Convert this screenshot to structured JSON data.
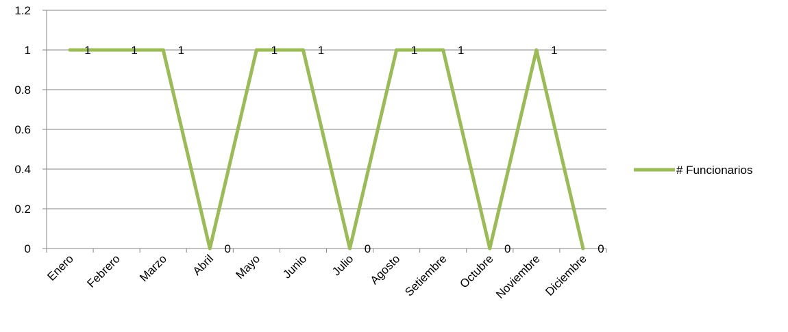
{
  "chart_data": {
    "type": "line",
    "title": "",
    "xlabel": "",
    "ylabel": "",
    "categories": [
      "Enero",
      "Febrero",
      "Marzo",
      "Abril",
      "Mayo",
      "Junio",
      "Julio",
      "Agosto",
      "Setiembre",
      "Octubre",
      "Noviembre",
      "Diciembre"
    ],
    "y_ticks": [
      "0",
      "0.2",
      "0.4",
      "0.6",
      "0.8",
      "1",
      "1.2"
    ],
    "ylim": [
      0,
      1.2
    ],
    "grid": true,
    "legend_position": "right",
    "series": [
      {
        "name": "# Funcionarios",
        "values": [
          1,
          1,
          1,
          0,
          1,
          1,
          0,
          1,
          1,
          0,
          1,
          0
        ],
        "data_labels": [
          "1",
          "1",
          "1",
          "0",
          "1",
          "1",
          "0",
          "1",
          "1",
          "0",
          "1",
          "0"
        ],
        "color": "#9BBB59"
      }
    ]
  }
}
